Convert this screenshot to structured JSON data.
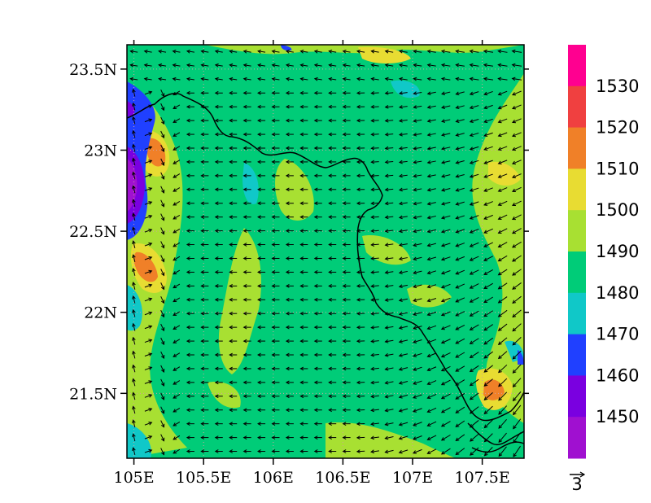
{
  "map": {
    "lat_labels": [
      "23.5N",
      "23N",
      "22.5N",
      "22N",
      "21.5N"
    ],
    "lat_values": [
      23.5,
      23.0,
      22.5,
      22.0,
      21.5
    ],
    "lon_labels": [
      "105E",
      "105.5E",
      "106E",
      "106.5E",
      "107E",
      "107.5E"
    ],
    "lon_values": [
      105.0,
      105.5,
      106.0,
      106.5,
      107.0,
      107.5
    ],
    "lon_range": [
      104.95,
      107.8
    ],
    "lat_range": [
      21.1,
      23.65
    ],
    "field": "geopotential height contours with wind vectors",
    "dominant_level": 1480
  },
  "colorbar": {
    "levels": [
      "1450",
      "1460",
      "1470",
      "1480",
      "1490",
      "1500",
      "1510",
      "1520",
      "1530"
    ],
    "colors": [
      "#a010d0",
      "#7a00e0",
      "#2040ff",
      "#10c8c8",
      "#00cc78",
      "#a8e032",
      "#e8dc32",
      "#f08028",
      "#f04040",
      "#ff0090"
    ]
  },
  "vector_reference": {
    "label": "3"
  },
  "colors": {
    "background_field": "#00cc78",
    "coastline": "#000000",
    "arrow": "#000000"
  }
}
